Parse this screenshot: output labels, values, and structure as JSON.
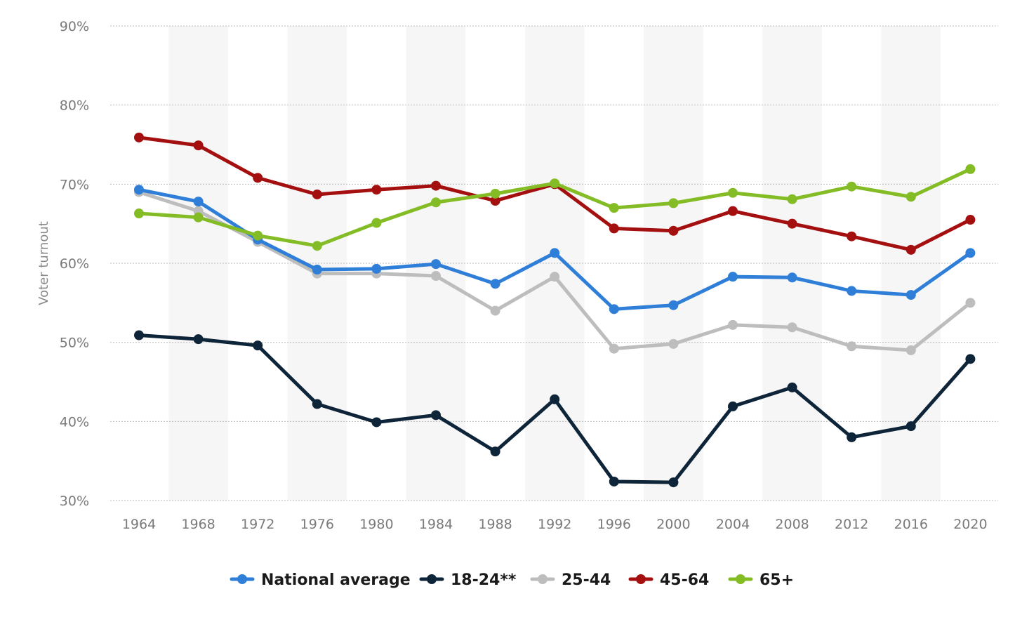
{
  "chart_data": {
    "type": "line",
    "title": "",
    "xlabel": "",
    "ylabel": "Voter turnout",
    "ylim": [
      30,
      90
    ],
    "y_ticks": [
      "30%",
      "40%",
      "50%",
      "60%",
      "70%",
      "80%",
      "90%"
    ],
    "y_tick_values": [
      30,
      40,
      50,
      60,
      70,
      80,
      90
    ],
    "categories": [
      "1964",
      "1968",
      "1972",
      "1976",
      "1980",
      "1984",
      "1988",
      "1992",
      "1996",
      "2000",
      "2004",
      "2008",
      "2012",
      "2016",
      "2020"
    ],
    "grid": true,
    "legend_position": "bottom",
    "series": [
      {
        "name": "National average",
        "color": "#2f7ed8",
        "values": [
          69.3,
          67.8,
          63.0,
          59.2,
          59.3,
          59.9,
          57.4,
          61.3,
          54.2,
          54.7,
          58.3,
          58.2,
          56.5,
          56.0,
          61.3
        ]
      },
      {
        "name": "18-24**",
        "color": "#0e2438",
        "values": [
          50.9,
          50.4,
          49.6,
          42.2,
          39.9,
          40.8,
          36.2,
          42.8,
          32.4,
          32.3,
          41.9,
          44.3,
          38.0,
          39.4,
          47.9
        ]
      },
      {
        "name": "25-44",
        "color": "#bdbdbd",
        "values": [
          69.0,
          66.6,
          62.7,
          58.7,
          58.7,
          58.4,
          54.0,
          58.3,
          49.2,
          49.8,
          52.2,
          51.9,
          49.5,
          49.0,
          55.0
        ]
      },
      {
        "name": "45-64",
        "color": "#a40f0f",
        "values": [
          75.9,
          74.9,
          70.8,
          68.7,
          69.3,
          69.8,
          67.9,
          70.0,
          64.4,
          64.1,
          66.6,
          65.0,
          63.4,
          61.7,
          65.5
        ]
      },
      {
        "name": "65+",
        "color": "#84bc26",
        "values": [
          66.3,
          65.8,
          63.5,
          62.2,
          65.1,
          67.7,
          68.8,
          70.1,
          67.0,
          67.6,
          68.9,
          68.1,
          69.7,
          68.4,
          71.9
        ]
      }
    ]
  }
}
